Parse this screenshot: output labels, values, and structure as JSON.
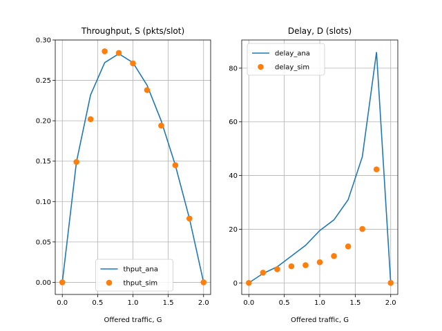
{
  "chart_data": [
    {
      "type": "line",
      "title": "Throughput, S (pkts/slot)",
      "xlabel": "Offered traffic, G",
      "ylabel": "",
      "xlim": [
        -0.1,
        2.1
      ],
      "ylim": [
        -0.015,
        0.3
      ],
      "xticks": [
        0.0,
        0.5,
        1.0,
        1.5,
        2.0
      ],
      "xtick_labels": [
        "0.0",
        "0.5",
        "1.0",
        "1.5",
        "2.0"
      ],
      "yticks": [
        0.0,
        0.05,
        0.1,
        0.15,
        0.2,
        0.25,
        0.3
      ],
      "ytick_labels": [
        "0.00",
        "0.05",
        "0.10",
        "0.15",
        "0.20",
        "0.25",
        "0.30"
      ],
      "grid": true,
      "legend": "bottom-center",
      "series": [
        {
          "name": "thput_ana",
          "style": "line",
          "color": "#1f77b4",
          "x": [
            0.0,
            0.2,
            0.4,
            0.6,
            0.8,
            1.0,
            1.2,
            1.4,
            1.6,
            1.8,
            2.0
          ],
          "y": [
            0.0,
            0.149,
            0.232,
            0.272,
            0.283,
            0.272,
            0.244,
            0.2,
            0.145,
            0.079,
            0.0
          ]
        },
        {
          "name": "thput_sim",
          "style": "marker",
          "color": "#ff7f0e",
          "x": [
            0.0,
            0.2,
            0.4,
            0.6,
            0.8,
            1.0,
            1.2,
            1.4,
            1.6,
            1.8,
            2.0
          ],
          "y": [
            0.0,
            0.149,
            0.202,
            0.286,
            0.284,
            0.271,
            0.238,
            0.194,
            0.145,
            0.079,
            0.0
          ]
        }
      ]
    },
    {
      "type": "line",
      "title": "Delay, D (slots)",
      "xlabel": "Offered traffic, G",
      "ylabel": "",
      "xlim": [
        -0.1,
        2.1
      ],
      "ylim": [
        -4.3,
        90.5
      ],
      "xticks": [
        0.0,
        0.5,
        1.0,
        1.5,
        2.0
      ],
      "xtick_labels": [
        "0.0",
        "0.5",
        "1.0",
        "1.5",
        "2.0"
      ],
      "yticks": [
        0,
        20,
        40,
        60,
        80
      ],
      "ytick_labels": [
        "0",
        "20",
        "40",
        "60",
        "80"
      ],
      "grid": true,
      "legend": "top-left",
      "series": [
        {
          "name": "delay_ana",
          "style": "line",
          "color": "#1f77b4",
          "x": [
            0.0,
            0.2,
            0.4,
            0.6,
            0.8,
            1.0,
            1.2,
            1.4,
            1.6,
            1.8,
            2.0
          ],
          "y": [
            0.0,
            3.5,
            6.0,
            10.0,
            14.0,
            19.5,
            23.5,
            31.0,
            47.0,
            86.0,
            0.0
          ]
        },
        {
          "name": "delay_sim",
          "style": "marker",
          "color": "#ff7f0e",
          "x": [
            0.0,
            0.2,
            0.4,
            0.6,
            0.8,
            1.0,
            1.2,
            1.4,
            1.6,
            1.8,
            2.0
          ],
          "y": [
            0.0,
            3.8,
            5.1,
            6.2,
            6.6,
            7.7,
            10.0,
            13.6,
            20.1,
            42.3,
            0.0
          ]
        }
      ]
    }
  ]
}
